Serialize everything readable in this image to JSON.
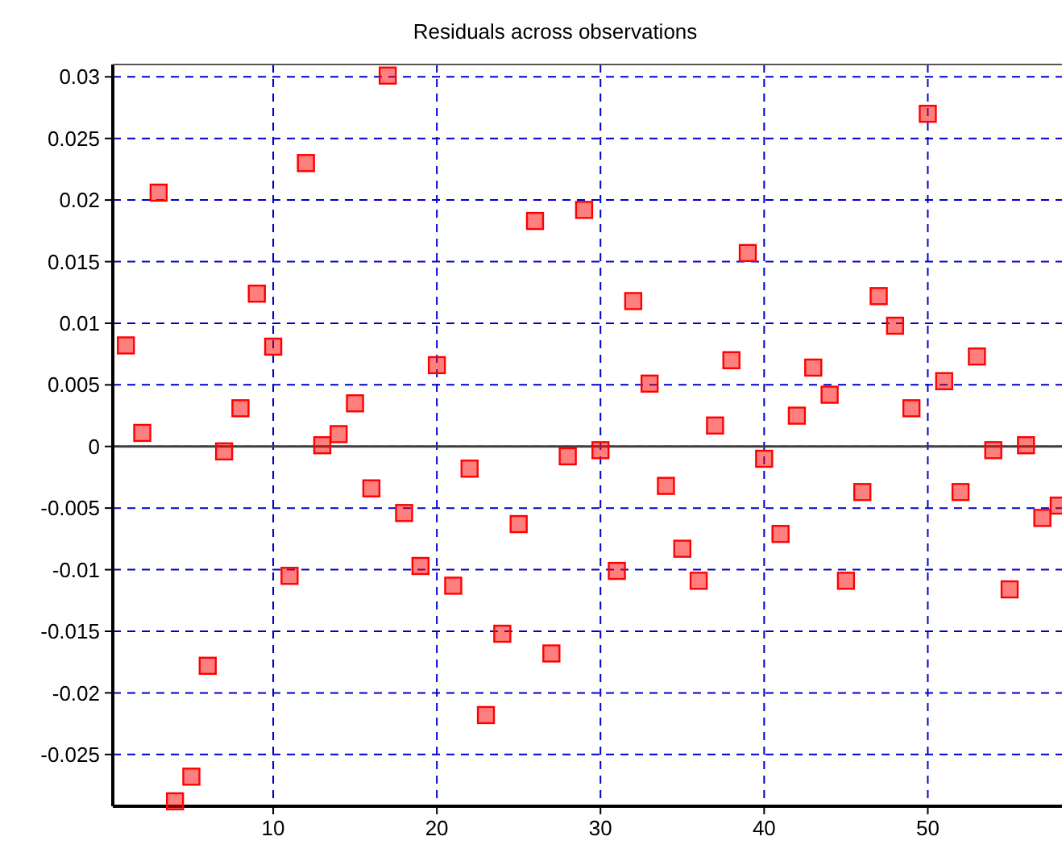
{
  "chart_data": {
    "type": "scatter",
    "title": "Residuals across observations",
    "marker": "square",
    "grid": true,
    "x": [
      1,
      2,
      3,
      4,
      5,
      6,
      7,
      8,
      9,
      10,
      11,
      12,
      13,
      14,
      15,
      16,
      17,
      18,
      19,
      20,
      21,
      22,
      23,
      24,
      25,
      26,
      27,
      28,
      29,
      30,
      31,
      32,
      33,
      34,
      35,
      36,
      37,
      38,
      39,
      40,
      41,
      42,
      43,
      44,
      45,
      46,
      47,
      48,
      49,
      50,
      51,
      52,
      53,
      54,
      55,
      56,
      57,
      58
    ],
    "series": [
      {
        "color": "#ff0000",
        "values": [
          0.0082,
          0.0011,
          0.0206,
          -0.0288,
          -0.0268,
          -0.0178,
          -0.0004,
          0.0031,
          0.0124,
          0.0081,
          -0.0105,
          0.023,
          0.0001,
          0.001,
          0.0035,
          -0.0034,
          0.0301,
          -0.0054,
          -0.0097,
          0.0066,
          -0.0113,
          -0.0018,
          -0.0218,
          -0.0152,
          -0.0063,
          0.0183,
          -0.0168,
          -0.0008,
          0.0192,
          -0.0003,
          -0.0101,
          0.0118,
          0.0051,
          -0.0032,
          -0.0083,
          -0.0109,
          0.0017,
          0.007,
          0.0157,
          -0.001,
          -0.0071,
          0.0025,
          0.0064,
          0.0042,
          -0.0109,
          -0.0037,
          0.0122,
          0.0098,
          0.0031,
          0.027,
          0.0053,
          -0.0037,
          0.0073,
          -0.0003,
          -0.0116,
          0.0001,
          -0.0058,
          -0.0048
        ]
      }
    ],
    "xlim": [
      0.2,
      58.2
    ],
    "xticks": [
      10,
      20,
      30,
      40,
      50
    ],
    "ylim": [
      -0.0292,
      0.031
    ],
    "yticks": [
      -0.025,
      -0.02,
      -0.015,
      -0.01,
      -0.005,
      0,
      0.005,
      0.01,
      0.015,
      0.02,
      0.025,
      0.03
    ],
    "ref_lines": [
      {
        "axis": "y",
        "value": 0,
        "color": "#404040",
        "line_style": "solid"
      }
    ]
  }
}
